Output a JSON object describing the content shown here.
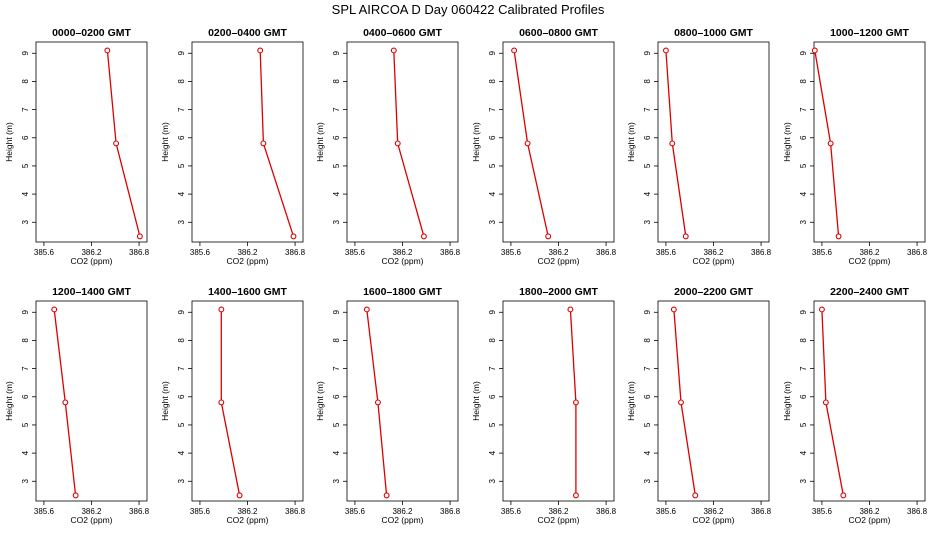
{
  "figure_title": "SPL AIRCOA D  Day 060422  Calibrated Profiles",
  "chart_data": [
    {
      "type": "line",
      "title": "0000–0200 GMT",
      "xlabel": "CO2 (ppm)",
      "ylabel": "Height (m)",
      "xlim": [
        385.5,
        386.9
      ],
      "ylim": [
        2.3,
        9.4
      ],
      "xticks": [
        "385.6",
        "386.2",
        "386.8"
      ],
      "yticks": [
        "3",
        "4",
        "5",
        "6",
        "7",
        "8",
        "9"
      ],
      "series": [
        {
          "x": [
            386.4,
            386.51,
            386.81
          ],
          "y": [
            9.1,
            5.8,
            2.5
          ]
        }
      ]
    },
    {
      "type": "line",
      "title": "0200–0400 GMT",
      "xlabel": "CO2 (ppm)",
      "ylabel": "Height (m)",
      "xlim": [
        385.5,
        386.9
      ],
      "ylim": [
        2.3,
        9.4
      ],
      "xticks": [
        "385.6",
        "386.2",
        "386.8"
      ],
      "yticks": [
        "3",
        "4",
        "5",
        "6",
        "7",
        "8",
        "9"
      ],
      "series": [
        {
          "x": [
            386.36,
            386.4,
            386.78
          ],
          "y": [
            9.1,
            5.8,
            2.5
          ]
        }
      ]
    },
    {
      "type": "line",
      "title": "0400–0600 GMT",
      "xlabel": "CO2 (ppm)",
      "ylabel": "Height (m)",
      "xlim": [
        385.5,
        386.9
      ],
      "ylim": [
        2.3,
        9.4
      ],
      "xticks": [
        "385.6",
        "386.2",
        "386.8"
      ],
      "yticks": [
        "3",
        "4",
        "5",
        "6",
        "7",
        "8",
        "9"
      ],
      "series": [
        {
          "x": [
            386.09,
            386.14,
            386.47
          ],
          "y": [
            9.1,
            5.8,
            2.5
          ]
        }
      ]
    },
    {
      "type": "line",
      "title": "0600–0800 GMT",
      "xlabel": "CO2 (ppm)",
      "ylabel": "Height (m)",
      "xlim": [
        385.5,
        386.9
      ],
      "ylim": [
        2.3,
        9.4
      ],
      "xticks": [
        "385.6",
        "386.2",
        "386.8"
      ],
      "yticks": [
        "3",
        "4",
        "5",
        "6",
        "7",
        "8",
        "9"
      ],
      "series": [
        {
          "x": [
            385.64,
            385.81,
            386.07
          ],
          "y": [
            9.1,
            5.8,
            2.5
          ]
        }
      ]
    },
    {
      "type": "line",
      "title": "0800–1000 GMT",
      "xlabel": "CO2 (ppm)",
      "ylabel": "Height (m)",
      "xlim": [
        385.5,
        386.9
      ],
      "ylim": [
        2.3,
        9.4
      ],
      "xticks": [
        "385.6",
        "386.2",
        "386.8"
      ],
      "yticks": [
        "3",
        "4",
        "5",
        "6",
        "7",
        "8",
        "9"
      ],
      "series": [
        {
          "x": [
            385.6,
            385.68,
            385.85
          ],
          "y": [
            9.1,
            5.8,
            2.5
          ]
        }
      ]
    },
    {
      "type": "line",
      "title": "1000–1200 GMT",
      "xlabel": "CO2 (ppm)",
      "ylabel": "Height (m)",
      "xlim": [
        385.5,
        386.9
      ],
      "ylim": [
        2.3,
        9.4
      ],
      "xticks": [
        "385.6",
        "386.2",
        "386.8"
      ],
      "yticks": [
        "3",
        "4",
        "5",
        "6",
        "7",
        "8",
        "9"
      ],
      "series": [
        {
          "x": [
            385.51,
            385.71,
            385.81
          ],
          "y": [
            9.1,
            5.8,
            2.5
          ]
        }
      ]
    },
    {
      "type": "line",
      "title": "1200–1400 GMT",
      "xlabel": "CO2 (ppm)",
      "ylabel": "Height (m)",
      "xlim": [
        385.5,
        386.9
      ],
      "ylim": [
        2.3,
        9.4
      ],
      "xticks": [
        "385.6",
        "386.2",
        "386.8"
      ],
      "yticks": [
        "3",
        "4",
        "5",
        "6",
        "7",
        "8",
        "9"
      ],
      "series": [
        {
          "x": [
            385.73,
            385.87,
            386.0
          ],
          "y": [
            9.1,
            5.8,
            2.5
          ]
        }
      ]
    },
    {
      "type": "line",
      "title": "1400–1600 GMT",
      "xlabel": "CO2 (ppm)",
      "ylabel": "Height (m)",
      "xlim": [
        385.5,
        386.9
      ],
      "ylim": [
        2.3,
        9.4
      ],
      "xticks": [
        "385.6",
        "386.2",
        "386.8"
      ],
      "yticks": [
        "3",
        "4",
        "5",
        "6",
        "7",
        "8",
        "9"
      ],
      "series": [
        {
          "x": [
            385.87,
            385.87,
            386.1
          ],
          "y": [
            9.1,
            5.8,
            2.5
          ]
        }
      ]
    },
    {
      "type": "line",
      "title": "1600–1800 GMT",
      "xlabel": "CO2 (ppm)",
      "ylabel": "Height (m)",
      "xlim": [
        385.5,
        386.9
      ],
      "ylim": [
        2.3,
        9.4
      ],
      "xticks": [
        "385.6",
        "386.2",
        "386.8"
      ],
      "yticks": [
        "3",
        "4",
        "5",
        "6",
        "7",
        "8",
        "9"
      ],
      "series": [
        {
          "x": [
            385.75,
            385.89,
            386.0
          ],
          "y": [
            9.1,
            5.8,
            2.5
          ]
        }
      ]
    },
    {
      "type": "line",
      "title": "1800–2000 GMT",
      "xlabel": "CO2 (ppm)",
      "ylabel": "Height (m)",
      "xlim": [
        385.5,
        386.9
      ],
      "ylim": [
        2.3,
        9.4
      ],
      "xticks": [
        "385.6",
        "386.2",
        "386.8"
      ],
      "yticks": [
        "3",
        "4",
        "5",
        "6",
        "7",
        "8",
        "9"
      ],
      "series": [
        {
          "x": [
            386.35,
            386.42,
            386.42
          ],
          "y": [
            9.1,
            5.8,
            2.5
          ]
        }
      ]
    },
    {
      "type": "line",
      "title": "2000–2200 GMT",
      "xlabel": "CO2 (ppm)",
      "ylabel": "Height (m)",
      "xlim": [
        385.5,
        386.9
      ],
      "ylim": [
        2.3,
        9.4
      ],
      "xticks": [
        "385.6",
        "386.2",
        "386.8"
      ],
      "yticks": [
        "3",
        "4",
        "5",
        "6",
        "7",
        "8",
        "9"
      ],
      "series": [
        {
          "x": [
            385.7,
            385.79,
            385.97
          ],
          "y": [
            9.1,
            5.8,
            2.5
          ]
        }
      ]
    },
    {
      "type": "line",
      "title": "2200–2400 GMT",
      "xlabel": "CO2 (ppm)",
      "ylabel": "Height (m)",
      "xlim": [
        385.5,
        386.9
      ],
      "ylim": [
        2.3,
        9.4
      ],
      "xticks": [
        "385.6",
        "386.2",
        "386.8"
      ],
      "yticks": [
        "3",
        "4",
        "5",
        "6",
        "7",
        "8",
        "9"
      ],
      "series": [
        {
          "x": [
            385.6,
            385.65,
            385.87
          ],
          "y": [
            9.1,
            5.8,
            2.5
          ]
        }
      ]
    }
  ],
  "colors": {
    "series": "#dd0000",
    "axes": "#000000"
  }
}
